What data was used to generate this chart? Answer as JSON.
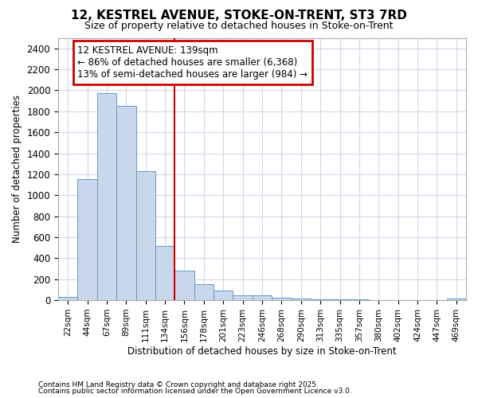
{
  "title1": "12, KESTREL AVENUE, STOKE-ON-TRENT, ST3 7RD",
  "title2": "Size of property relative to detached houses in Stoke-on-Trent",
  "xlabel": "Distribution of detached houses by size in Stoke-on-Trent",
  "ylabel": "Number of detached properties",
  "categories": [
    "22sqm",
    "44sqm",
    "67sqm",
    "89sqm",
    "111sqm",
    "134sqm",
    "156sqm",
    "178sqm",
    "201sqm",
    "223sqm",
    "246sqm",
    "268sqm",
    "290sqm",
    "313sqm",
    "335sqm",
    "357sqm",
    "380sqm",
    "402sqm",
    "424sqm",
    "447sqm",
    "469sqm"
  ],
  "values": [
    30,
    1150,
    1970,
    1850,
    1230,
    520,
    280,
    150,
    90,
    45,
    45,
    20,
    15,
    10,
    8,
    5,
    4,
    3,
    3,
    3,
    15
  ],
  "bar_color": "#c8d8ea",
  "bar_edge_color": "#6699cc",
  "vline_color": "#cc0000",
  "annotation_line1": "12 KESTREL AVENUE: 139sqm",
  "annotation_line2": "← 86% of detached houses are smaller (6,368)",
  "annotation_line3": "13% of semi-detached houses are larger (984) →",
  "annotation_box_color": "#cc0000",
  "ylim": [
    0,
    2500
  ],
  "yticks": [
    0,
    200,
    400,
    600,
    800,
    1000,
    1200,
    1400,
    1600,
    1800,
    2000,
    2200,
    2400
  ],
  "bg_color": "#ffffff",
  "plot_bg_color": "#ffffff",
  "grid_color": "#d0d8e8",
  "footer1": "Contains HM Land Registry data © Crown copyright and database right 2025.",
  "footer2": "Contains public sector information licensed under the Open Government Licence v3.0."
}
